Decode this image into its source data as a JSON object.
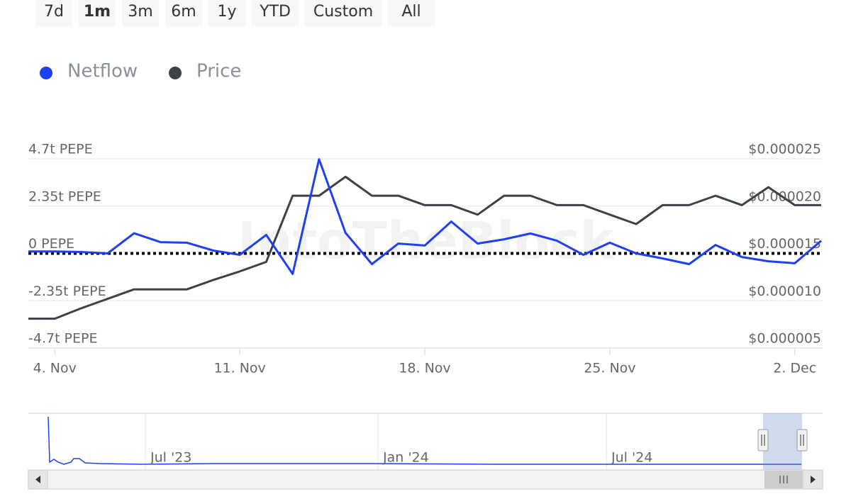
{
  "range_selector": {
    "buttons": [
      "7d",
      "1m",
      "3m",
      "6m",
      "1y",
      "YTD",
      "Custom",
      "All"
    ],
    "selected": 1
  },
  "chart_data": {
    "type": "line",
    "watermark": "IntoTheBlock",
    "categories": [
      null,
      "4. Nov",
      null,
      null,
      null,
      null,
      null,
      null,
      "11. Nov",
      null,
      null,
      null,
      null,
      null,
      null,
      "18. Nov",
      null,
      null,
      null,
      null,
      null,
      null,
      "25. Nov",
      null,
      null,
      null,
      null,
      null,
      null,
      "2. Dec",
      null
    ],
    "series": [
      {
        "name": "Netflow",
        "color": "#1f3ff5",
        "axis": "y",
        "values": [
          0.1,
          0.1,
          0.07,
          0,
          1.0,
          0.56,
          0.53,
          0.14,
          -0.07,
          0.92,
          -1.02,
          4.68,
          1.02,
          -0.53,
          0.49,
          0.39,
          1.58,
          0.49,
          0.7,
          0.99,
          0.63,
          -0.07,
          0.53,
          0,
          -0.25,
          -0.53,
          0.42,
          -0.18,
          -0.39,
          -0.49,
          0.63
        ]
      },
      {
        "name": "Price",
        "color": "#3d4148",
        "axis": "y2",
        "values": [
          8.1e-06,
          8.1e-06,
          9.2e-06,
          1.02e-05,
          1.12e-05,
          1.12e-05,
          1.12e-05,
          1.22e-05,
          1.31e-05,
          1.41e-05,
          2.11e-05,
          2.11e-05,
          2.31e-05,
          2.11e-05,
          2.11e-05,
          2.01e-05,
          2.01e-05,
          1.91e-05,
          2.11e-05,
          2.11e-05,
          2.01e-05,
          2.01e-05,
          1.91e-05,
          1.81e-05,
          2.01e-05,
          2.01e-05,
          2.11e-05,
          2.01e-05,
          2.2e-05,
          2.01e-05,
          2.01e-05
        ]
      }
    ],
    "ylim": [
      -4.7,
      4.7
    ],
    "yticks": [
      {
        "value": -4.7,
        "label": "-4.7t PEPE"
      },
      {
        "value": -2.35,
        "label": "-2.35t PEPE"
      },
      {
        "value": 0,
        "label": "0 PEPE"
      },
      {
        "value": 2.35,
        "label": "2.35t PEPE"
      },
      {
        "value": 4.7,
        "label": "4.7t PEPE"
      }
    ],
    "y2lim": [
      5e-06,
      2.5e-05
    ],
    "y2ticks": [
      {
        "value": 5e-06,
        "label": "$0.000005"
      },
      {
        "value": 1e-05,
        "label": "$0.000010"
      },
      {
        "value": 1.5e-05,
        "label": "$0.000015"
      },
      {
        "value": 2e-05,
        "label": "$0.000020"
      },
      {
        "value": 2.5e-05,
        "label": "$0.000025"
      }
    ],
    "grid": true,
    "navigator": {
      "labels": [
        "Jul '23",
        "Jan '24",
        "Jul '24"
      ]
    }
  }
}
